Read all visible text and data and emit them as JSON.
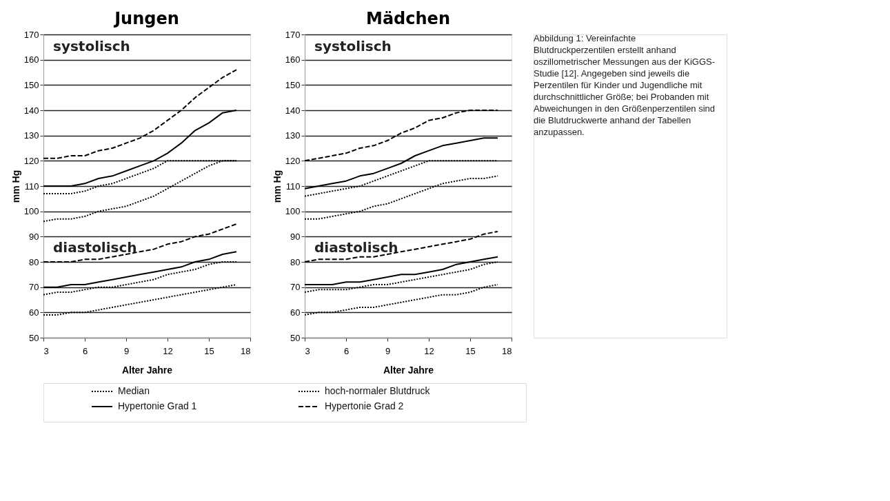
{
  "chart_data": [
    {
      "type": "line",
      "title": "Jungen",
      "xlabel": "Alter Jahre",
      "ylabel": "mm Hg",
      "xlim": [
        3,
        18
      ],
      "xticks": [
        3,
        6,
        9,
        12,
        15,
        18
      ],
      "ylim": [
        50,
        170
      ],
      "yticks": [
        50,
        60,
        70,
        80,
        90,
        100,
        110,
        120,
        130,
        140,
        150,
        160,
        170
      ],
      "grid": "y",
      "legend": "bottom",
      "x": [
        3,
        4,
        5,
        6,
        7,
        8,
        9,
        10,
        11,
        12,
        13,
        14,
        15,
        16,
        17
      ],
      "annotations": [
        "systolisch",
        "diastolisch"
      ],
      "series": [
        {
          "name": "Median",
          "color": "#000000",
          "line_style": "dotted",
          "values": [
            96,
            97,
            97,
            98,
            100,
            101,
            102,
            104,
            106,
            109,
            112,
            115,
            118,
            120,
            120
          ]
        },
        {
          "name": "hoch-normaler Blutdruck",
          "color": "#000000",
          "line_style": "dotted",
          "values": [
            107,
            107,
            107,
            108,
            110,
            111,
            113,
            115,
            117,
            120,
            120,
            120,
            120,
            120,
            120
          ]
        },
        {
          "name": "Hypertonie Grad 1",
          "color": "#000000",
          "line_style": "solid",
          "values": [
            110,
            110,
            110,
            111,
            113,
            114,
            116,
            118,
            120,
            123,
            127,
            132,
            135,
            139,
            140
          ]
        },
        {
          "name": "Hypertonie Grad 2",
          "color": "#000000",
          "line_style": "dashed",
          "values": [
            121,
            121,
            122,
            122,
            124,
            125,
            127,
            129,
            132,
            136,
            140,
            145,
            149,
            153,
            156
          ]
        },
        {
          "color": "#000000",
          "line_style": "dotted",
          "values": [
            59,
            59,
            60,
            60,
            61,
            62,
            63,
            64,
            65,
            66,
            67,
            68,
            69,
            70,
            71
          ]
        },
        {
          "color": "#000000",
          "line_style": "dotted",
          "values": [
            67,
            68,
            68,
            69,
            70,
            70,
            71,
            72,
            73,
            75,
            76,
            77,
            79,
            80,
            80
          ]
        },
        {
          "color": "#000000",
          "line_style": "solid",
          "values": [
            70,
            70,
            71,
            71,
            72,
            73,
            74,
            75,
            76,
            77,
            78,
            80,
            81,
            83,
            84
          ]
        },
        {
          "color": "#000000",
          "line_style": "dashed",
          "values": [
            80,
            80,
            80,
            81,
            81,
            82,
            83,
            84,
            85,
            87,
            88,
            90,
            91,
            93,
            95
          ]
        }
      ]
    },
    {
      "type": "line",
      "title": "Mädchen",
      "xlabel": "Alter Jahre",
      "ylabel": "mm Hg",
      "xlim": [
        3,
        18
      ],
      "xticks": [
        3,
        6,
        9,
        12,
        15,
        18
      ],
      "ylim": [
        50,
        170
      ],
      "yticks": [
        50,
        60,
        70,
        80,
        90,
        100,
        110,
        120,
        130,
        140,
        150,
        160,
        170
      ],
      "grid": "y",
      "legend": "bottom",
      "x": [
        3,
        4,
        5,
        6,
        7,
        8,
        9,
        10,
        11,
        12,
        13,
        14,
        15,
        16,
        17
      ],
      "annotations": [
        "systolisch",
        "diastolisch",
        "Abbildung 1: Vereinfachte Blutdruckperzentilen erstellt anhand oszillometrischer Messungen aus der KiGGS-Studie [12]. Angegeben sind jeweils die Perzentilen für Kinder und Jugendliche mit durchschnittlicher Größe; bei Probanden mit Abweichungen in den Größenperzentilen sind die Blutdruckwerte anhand der Tabellen anzupassen."
      ],
      "series": [
        {
          "name": "Median",
          "color": "#000000",
          "line_style": "dotted",
          "values": [
            97,
            97,
            98,
            99,
            100,
            102,
            103,
            105,
            107,
            109,
            111,
            112,
            113,
            113,
            114
          ]
        },
        {
          "name": "hoch-normaler Blutdruck",
          "color": "#000000",
          "line_style": "dotted",
          "values": [
            106,
            107,
            108,
            109,
            110,
            112,
            114,
            116,
            118,
            120,
            120,
            120,
            120,
            120,
            120
          ]
        },
        {
          "name": "Hypertonie Grad 1",
          "color": "#000000",
          "line_style": "solid",
          "values": [
            109,
            110,
            111,
            112,
            114,
            115,
            117,
            119,
            122,
            124,
            126,
            127,
            128,
            129,
            129
          ]
        },
        {
          "name": "Hypertonie Grad 2",
          "color": "#000000",
          "line_style": "dashed",
          "values": [
            120,
            121,
            122,
            123,
            125,
            126,
            128,
            131,
            133,
            136,
            137,
            139,
            140,
            140,
            140
          ]
        },
        {
          "color": "#000000",
          "line_style": "dotted",
          "values": [
            59,
            60,
            60,
            61,
            62,
            62,
            63,
            64,
            65,
            66,
            67,
            67,
            68,
            70,
            71
          ]
        },
        {
          "color": "#000000",
          "line_style": "dotted",
          "values": [
            68,
            69,
            69,
            69,
            70,
            71,
            71,
            72,
            73,
            74,
            75,
            76,
            77,
            79,
            80
          ]
        },
        {
          "color": "#000000",
          "line_style": "solid",
          "values": [
            71,
            71,
            71,
            72,
            72,
            73,
            74,
            75,
            75,
            76,
            77,
            79,
            80,
            81,
            82
          ]
        },
        {
          "color": "#000000",
          "line_style": "dashed",
          "values": [
            80,
            81,
            81,
            81,
            82,
            82,
            83,
            84,
            85,
            86,
            87,
            88,
            89,
            91,
            92
          ]
        }
      ]
    }
  ]
}
